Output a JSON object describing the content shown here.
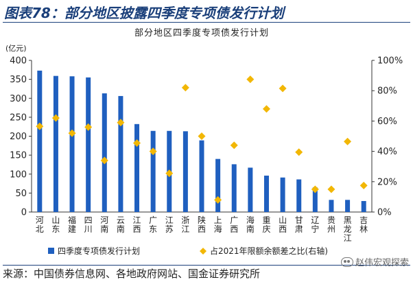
{
  "figure_title": "图表78：部分地区披露四季度专项债发行计划",
  "source_text": "来源：中国债券信息网、各地政府网站、国金证券研究所",
  "watermark": "赵伟宏观探索",
  "colors": {
    "bar": "#1f5fbf",
    "marker": "#f2b705",
    "title": "#1a3f7a",
    "axis": "#333333"
  },
  "chart_data": {
    "type": "bar",
    "title": "部分地区四季度专项债发行计划",
    "y_unit": "(亿元)",
    "categories": [
      "河北",
      "山东",
      "福建",
      "四川",
      "河南",
      "云南",
      "江西",
      "广东",
      "江苏",
      "浙江",
      "陕西",
      "上海",
      "广西",
      "海南",
      "重庆",
      "山西",
      "甘肃",
      "辽宁",
      "贵州",
      "黑龙江",
      "吉林"
    ],
    "y_ticks": [
      "0",
      "50",
      "100",
      "150",
      "200",
      "250",
      "300",
      "350",
      "400"
    ],
    "y2_ticks": [
      "0%",
      "20%",
      "40%",
      "60%",
      "80%",
      "100%"
    ],
    "ylim": [
      0,
      400
    ],
    "y2lim": [
      0,
      100
    ],
    "series": [
      {
        "name": "四季度专项债发行计划",
        "type": "bar",
        "axis": "left",
        "values": [
          373,
          359,
          358,
          355,
          313,
          306,
          232,
          214,
          214,
          213,
          189,
          140,
          126,
          117,
          96,
          91,
          86,
          65,
          32,
          32,
          29
        ]
      },
      {
        "name": "占2021年限额余额差之比(右轴)",
        "type": "scatter",
        "axis": "right",
        "values": [
          56.5,
          62,
          52,
          56,
          34,
          59,
          45.5,
          40,
          25.5,
          82,
          50,
          8,
          44,
          87.5,
          68,
          81.5,
          39.5,
          15,
          15,
          46.5,
          17.5
        ]
      }
    ],
    "legend_position": "bottom",
    "grid": false
  }
}
